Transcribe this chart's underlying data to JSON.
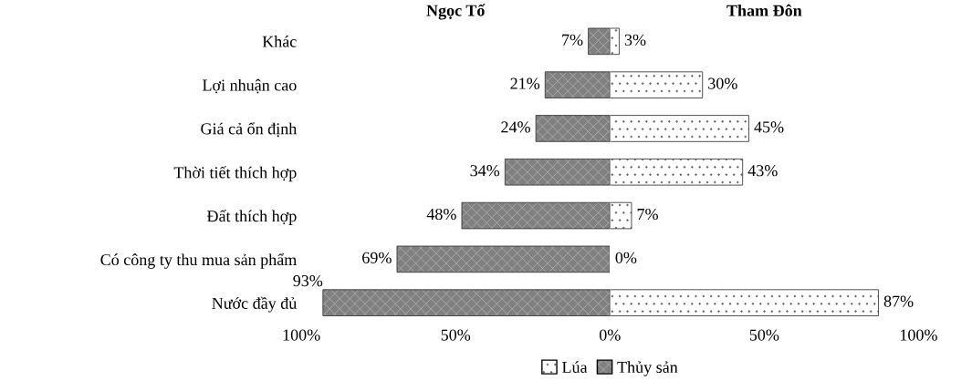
{
  "chart_data": [
    {
      "type": "bar",
      "orientation": "horizontal",
      "title": "Ngọc Tố",
      "categories": [
        "Khác",
        "Lợi nhuận cao",
        "Giá cả ổn định",
        "Thời tiết thích hợp",
        "Đất thích hợp",
        "Có công ty thu mua sản phẩm",
        "Nước đầy đủ"
      ],
      "series": [
        {
          "name": "Thủy sản",
          "color": "#808080",
          "values": [
            7,
            21,
            24,
            34,
            48,
            69,
            93
          ],
          "value_labels": [
            "7%",
            "21%",
            "24%",
            "34%",
            "48%",
            "69%",
            "93%"
          ]
        }
      ],
      "xlim": [
        100,
        0
      ],
      "xticks": [
        {
          "value": 100,
          "label": "100%"
        },
        {
          "value": 50,
          "label": "50%"
        },
        {
          "value": 0,
          "label": null
        }
      ],
      "legend": "bottom",
      "grid": false
    },
    {
      "type": "bar",
      "orientation": "horizontal",
      "title": "Tham Đôn",
      "categories": [
        null,
        null,
        null,
        null,
        null,
        null,
        null
      ],
      "series": [
        {
          "name": "Lúa",
          "color": "#ffffff",
          "values": [
            3,
            30,
            45,
            43,
            7,
            0,
            87
          ],
          "value_labels": [
            "3%",
            "30%",
            "45%",
            "43%",
            "7%",
            "0%",
            "87%"
          ]
        }
      ],
      "xlim": [
        0,
        100
      ],
      "xticks": [
        {
          "value": 0,
          "label": "0%"
        },
        {
          "value": 50,
          "label": "50%"
        },
        {
          "value": 100,
          "label": "100%"
        }
      ],
      "tick_labels": "x",
      "legend": "bottom",
      "grid": false
    }
  ]
}
